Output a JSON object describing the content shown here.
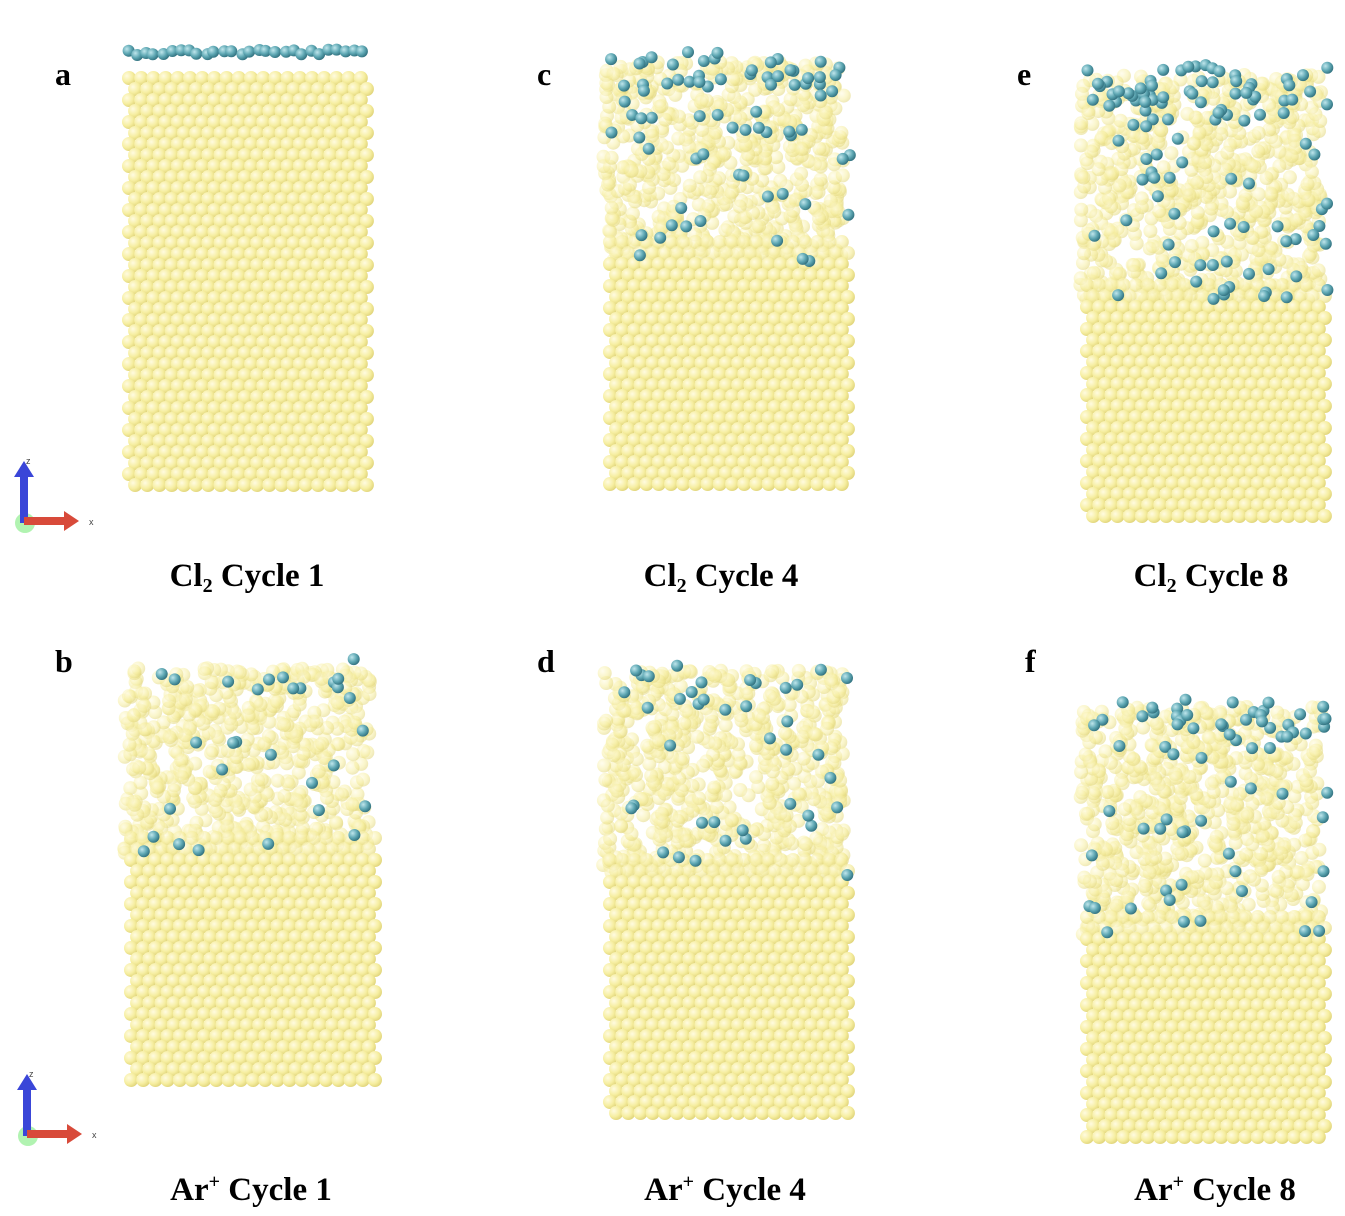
{
  "panels": [
    {
      "letter": "a",
      "species": "Cl",
      "sub": "2",
      "sup": "",
      "cycle_text": "Cycle 1"
    },
    {
      "letter": "c",
      "species": "Cl",
      "sub": "2",
      "sup": "",
      "cycle_text": "Cycle 4"
    },
    {
      "letter": "e",
      "species": "Cl",
      "sub": "2",
      "sup": "",
      "cycle_text": "Cycle 8"
    },
    {
      "letter": "b",
      "species": "Ar",
      "sub": "",
      "sup": "+",
      "cycle_text": "Cycle 1"
    },
    {
      "letter": "d",
      "species": "Ar",
      "sub": "",
      "sup": "+",
      "cycle_text": "Cycle 4"
    },
    {
      "letter": "f",
      "species": "Ar",
      "sub": "",
      "sup": "+",
      "cycle_text": "Cycle 8"
    }
  ],
  "axes_labels": {
    "z": "z",
    "x": "x"
  },
  "colors": {
    "substrate_atom": "#f6eea0",
    "substrate_atom_edge": "#e0d47a",
    "adsorbate_atom": "#5fa8b4",
    "adsorbate_atom_dark": "#2f6f7d",
    "axis_z": "#3a46d8",
    "axis_x": "#d84a3a",
    "axis_y": "#7fe07f"
  }
}
